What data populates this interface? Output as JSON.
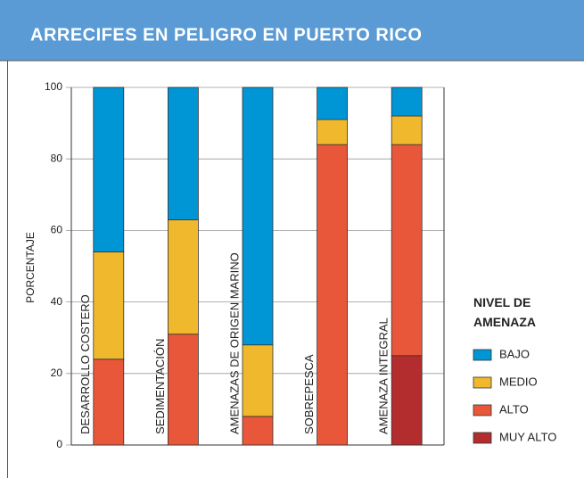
{
  "chart_data": {
    "type": "stacked_bar",
    "title": "ARRECIFES EN PELIGRO EN PUERTO RICO",
    "y_label": "PORCENTAJE",
    "legend_title": "NIVEL DE AMENAZA",
    "categories": [
      "DESARROLLO COSTERO",
      "SEDIMENTACIÓN",
      "AMENAZAS DE ORIGEN MARINO",
      "SOBREPESCA",
      "AMENAZA INTEGRAL"
    ],
    "series": [
      {
        "name": "BAJO",
        "color": "#0096d6",
        "values": [
          46,
          37,
          72,
          9,
          8
        ]
      },
      {
        "name": "MEDIO",
        "color": "#f0b92d",
        "values": [
          30,
          32,
          20,
          7,
          8
        ]
      },
      {
        "name": "ALTO",
        "color": "#e8573a",
        "values": [
          24,
          31,
          8,
          84,
          59
        ]
      },
      {
        "name": "MUY ALTO",
        "color": "#b32d2e",
        "values": [
          0,
          0,
          0,
          0,
          25
        ]
      }
    ],
    "ylim": [
      0,
      100
    ],
    "yticks": [
      0,
      20,
      40,
      60,
      80,
      100
    ],
    "grid": true
  }
}
